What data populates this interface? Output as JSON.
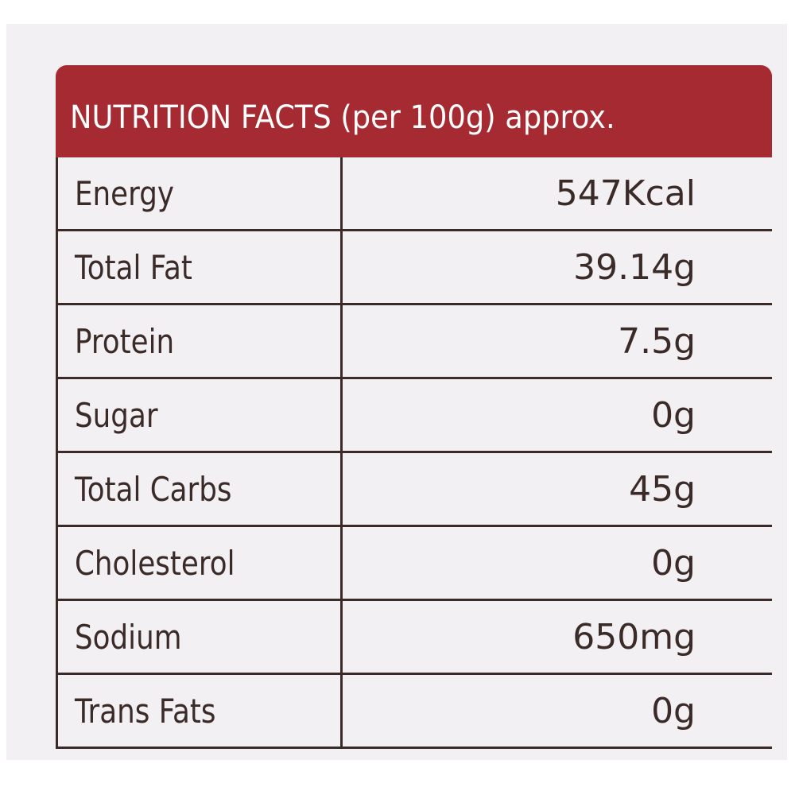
{
  "table": {
    "title": "NUTRITION FACTS (per 100g) approx.",
    "rows": [
      [
        "Energy",
        "547Kcal"
      ],
      [
        "Total Fat",
        "39.14g"
      ],
      [
        "Protein",
        "7.5g"
      ],
      [
        "Sugar",
        "0g"
      ],
      [
        "Total Carbs",
        "45g"
      ],
      [
        "Cholesterol",
        "0g"
      ],
      [
        "Sodium",
        "650mg"
      ],
      [
        "Trans Fats",
        "0g"
      ]
    ]
  }
}
